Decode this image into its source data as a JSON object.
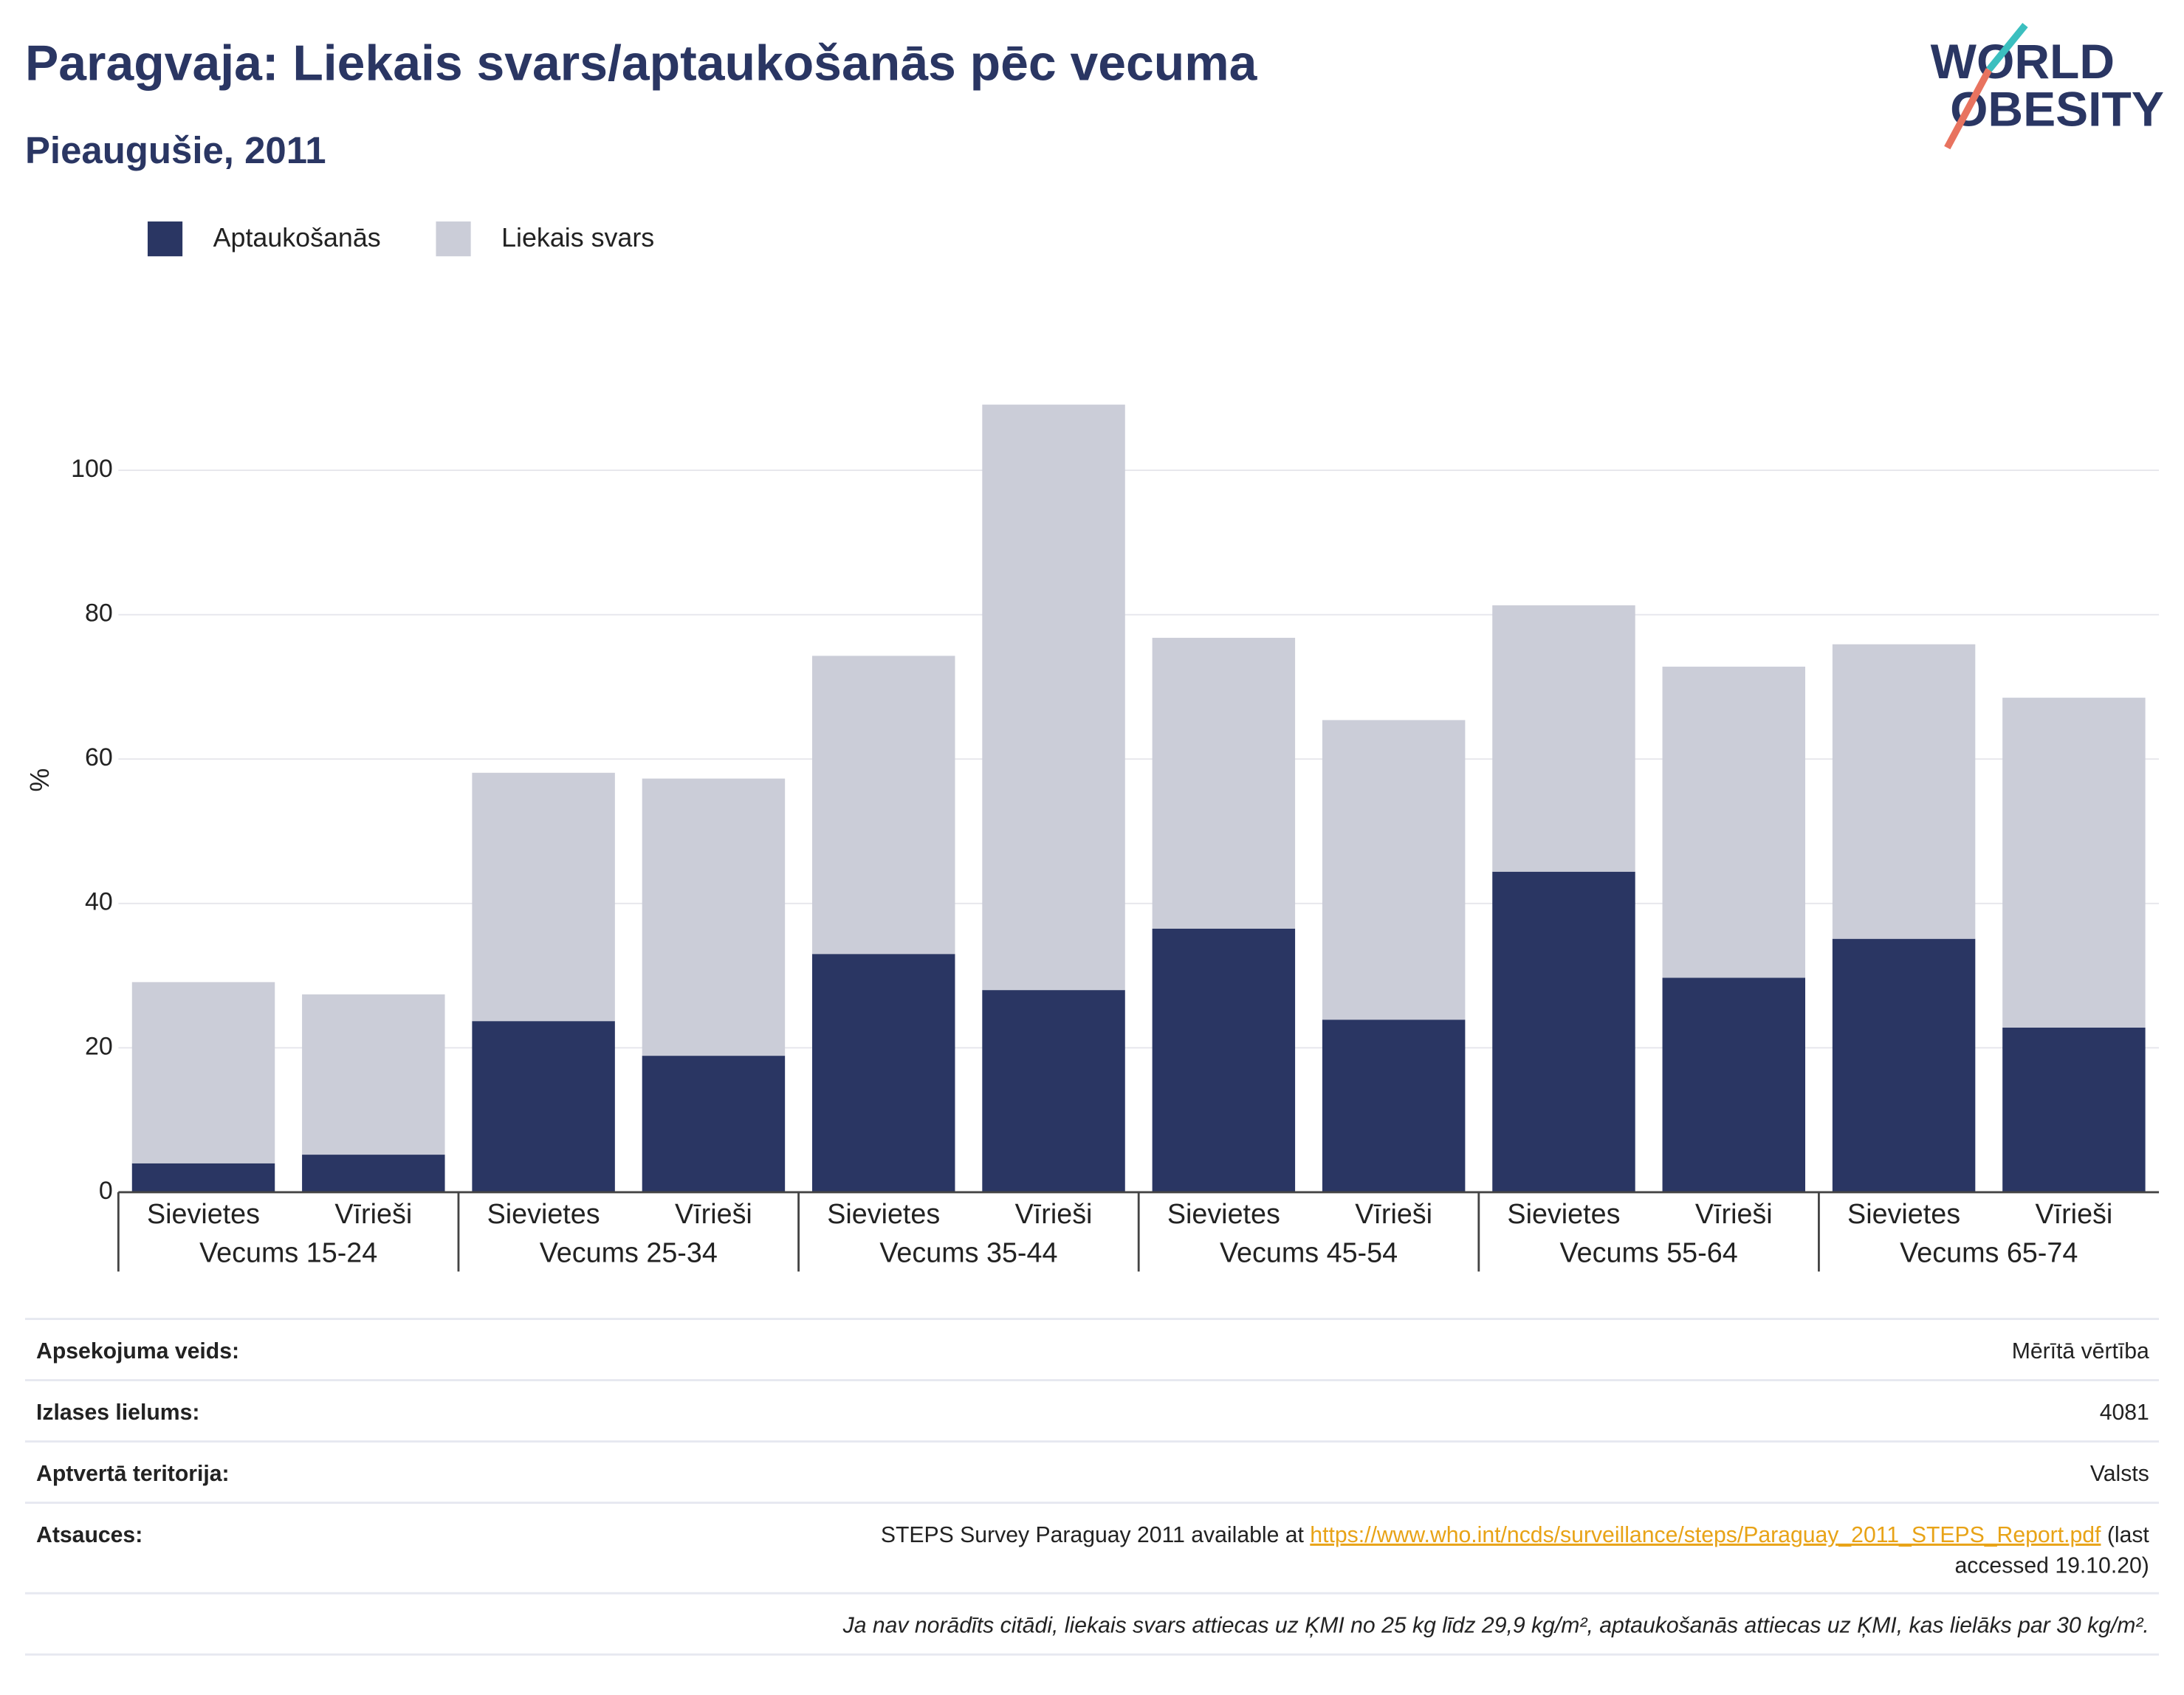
{
  "chart_data": {
    "type": "stacked_bar",
    "title": "Paragvaja: Liekais svars/aptaukošanās pēc vecuma",
    "subtitle": "Pieaugušie, 2011",
    "logo": [
      "WORLD",
      "OBESITY"
    ],
    "y_label": "%",
    "categories": [
      "Sievietes",
      "Vīrieši",
      "Sievietes",
      "Vīrieši",
      "Sievietes",
      "Vīrieši",
      "Sievietes",
      "Vīrieši",
      "Sievietes",
      "Vīrieši",
      "Sievietes",
      "Vīrieši"
    ],
    "groups": [
      "Vecums 15-24",
      "Vecums 25-34",
      "Vecums 35-44",
      "Vecums 45-54",
      "Vecums 55-64",
      "Vecums 65-74"
    ],
    "series": [
      {
        "name": "Aptaukošanās",
        "color": "#2a3663",
        "values": [
          4.0,
          5.2,
          23.7,
          18.9,
          33.0,
          28.0,
          36.5,
          23.9,
          44.4,
          29.7,
          35.1,
          22.8
        ]
      },
      {
        "name": "Liekais svars",
        "color": "#cbcdd8",
        "values": [
          25.1,
          22.2,
          34.4,
          38.4,
          41.3,
          81.1,
          40.3,
          41.5,
          36.9,
          43.1,
          40.8,
          45.7
        ]
      }
    ],
    "ylim": [
      0,
      120
    ],
    "yticks": [
      0,
      20,
      40,
      60,
      80,
      100
    ],
    "grid": true,
    "legend": "top-left"
  },
  "info": {
    "rows": [
      {
        "label": "Apsekojuma veids:",
        "value": "Mērītā vērtība"
      },
      {
        "label": "Izlases lielums:",
        "value": "4081"
      },
      {
        "label": "Aptvertā teritorija:",
        "value": "Valsts"
      }
    ],
    "reference": {
      "label": "Atsauces:",
      "text": "STEPS Survey Paraguay 2011 available at ",
      "link": "https://www.who.int/ncds/surveillance/steps/Paraguay_2011_STEPS_Report.pdf",
      "rest": [
        " (last",
        "accessed 19.10.20)"
      ]
    },
    "note": "Ja nav norādīts citādi, liekais svars attiecas uz ĶMI no 25 kg līdz 29,9 kg/m², aptaukošanās attiecas uz ĶMI, kas lielāks par 30 kg/m²."
  }
}
